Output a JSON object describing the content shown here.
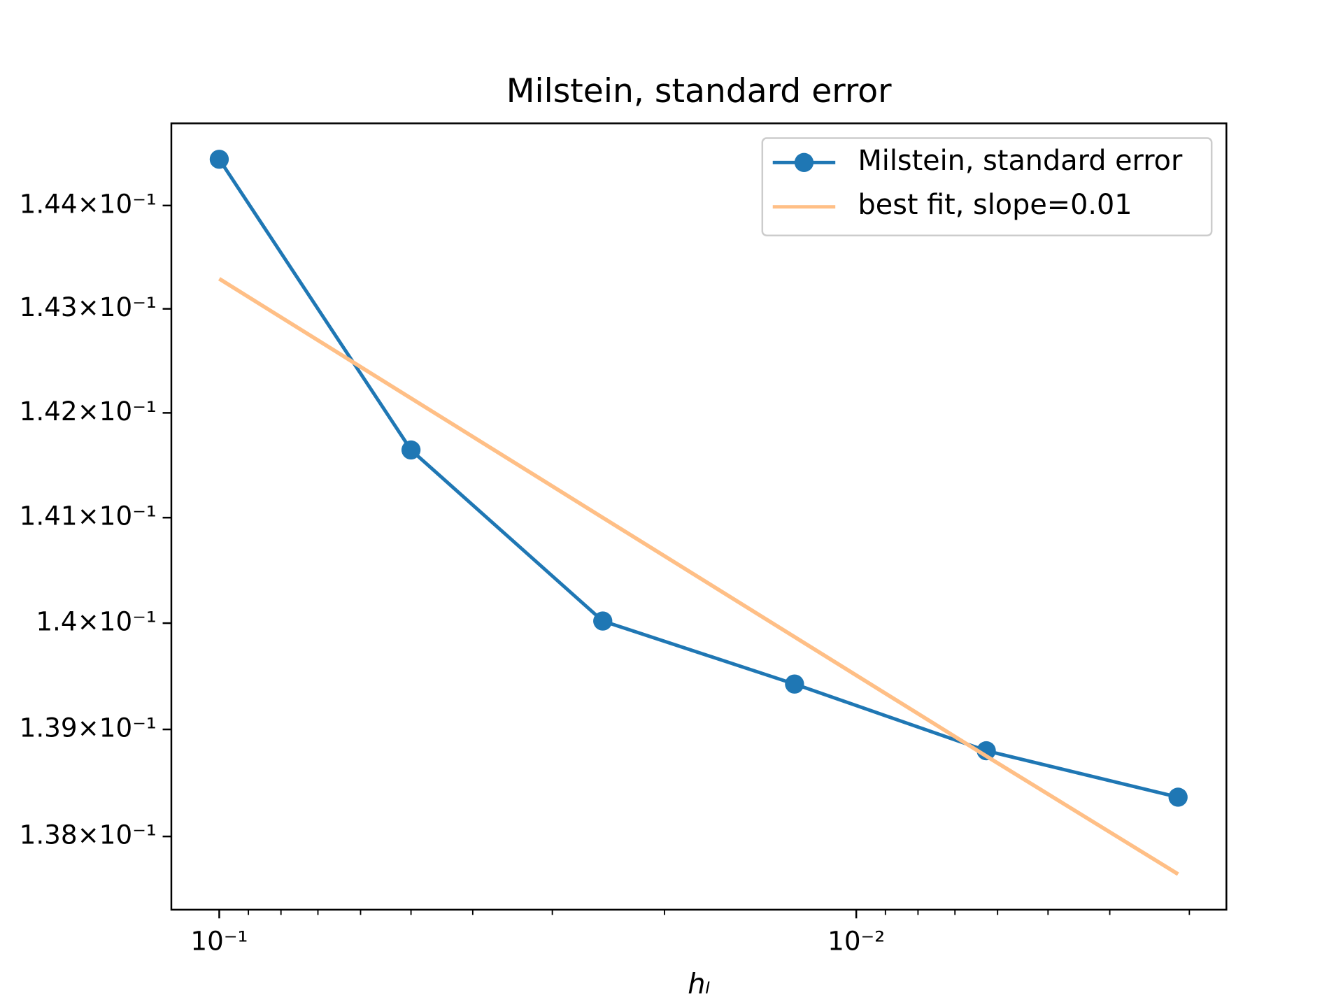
{
  "chart_data": {
    "type": "line",
    "title": "Milstein, standard error",
    "x_label": "hₗ",
    "x": [
      0.1,
      0.05,
      0.025,
      0.0125,
      0.00625,
      0.003125
    ],
    "series": [
      {
        "name": "Milstein, standard error",
        "color": "#1f77b4",
        "marker": "o",
        "values": [
          0.14445,
          0.141645,
          0.14002,
          0.139426,
          0.1388,
          0.138366
        ]
      },
      {
        "name": "best fit, slope=0.01",
        "color": "#ffbf86",
        "values": [
          0.14329,
          0.14214,
          0.141,
          0.13987,
          0.13875,
          0.13765
        ]
      }
    ],
    "x_scale": "log",
    "y_scale": "log",
    "xlim": [
      0.1189,
      0.002624
    ],
    "ylim": [
      0.13732,
      0.1448
    ],
    "xticks": [
      {
        "value": 0.1,
        "label": "10⁻¹"
      },
      {
        "value": 0.01,
        "label": "10⁻²"
      }
    ],
    "xminorticks": [
      0.09,
      0.08,
      0.07,
      0.06,
      0.05,
      0.04,
      0.03,
      0.02,
      0.009,
      0.008,
      0.007,
      0.006,
      0.005,
      0.004,
      0.003
    ],
    "yticks": [
      {
        "value": 0.138,
        "label": "1.38×10⁻¹"
      },
      {
        "value": 0.139,
        "label": "1.39×10⁻¹"
      },
      {
        "value": 0.14,
        "label": "1.4×10⁻¹"
      },
      {
        "value": 0.141,
        "label": "1.41×10⁻¹"
      },
      {
        "value": 0.142,
        "label": "1.42×10⁻¹"
      },
      {
        "value": 0.143,
        "label": "1.43×10⁻¹"
      },
      {
        "value": 0.144,
        "label": "1.44×10⁻¹"
      }
    ],
    "legend": "upper right"
  }
}
